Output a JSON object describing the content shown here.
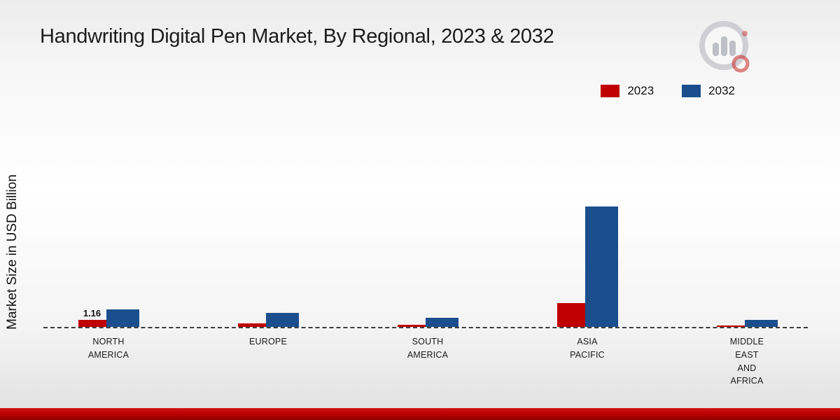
{
  "title": "Handwriting Digital Pen Market, By Regional, 2023 & 2032",
  "legend": [
    {
      "label": "2023",
      "color": "#c00000"
    },
    {
      "label": "2032",
      "color": "#1b4e8c"
    }
  ],
  "chart_data": {
    "type": "bar",
    "title": "Handwriting Digital Pen Market, By Regional, 2023 & 2032",
    "ylabel": "Market Size in USD Billion",
    "xlabel": "",
    "categories": [
      "North America",
      "Europe",
      "South America",
      "Asia Pacific",
      "Middle East and Africa"
    ],
    "category_lines": [
      [
        "NORTH",
        "AMERICA"
      ],
      [
        "EUROPE"
      ],
      [
        "SOUTH",
        "AMERICA"
      ],
      [
        "ASIA",
        "PACIFIC"
      ],
      [
        "MIDDLE",
        "EAST",
        "AND",
        "AFRICA"
      ]
    ],
    "series": [
      {
        "name": "2023",
        "color": "#c00000",
        "values": [
          1.16,
          0.6,
          0.3,
          3.9,
          0.25
        ]
      },
      {
        "name": "2032",
        "color": "#1b4e8c",
        "values": [
          2.9,
          2.35,
          1.55,
          20.0,
          1.2
        ]
      }
    ],
    "value_labels": [
      {
        "series_index": 0,
        "category_index": 0,
        "text": "1.16"
      }
    ],
    "ylim": [
      0,
      22
    ],
    "baseline_style": "dashed",
    "grid": false,
    "legend_position": "top-right"
  }
}
